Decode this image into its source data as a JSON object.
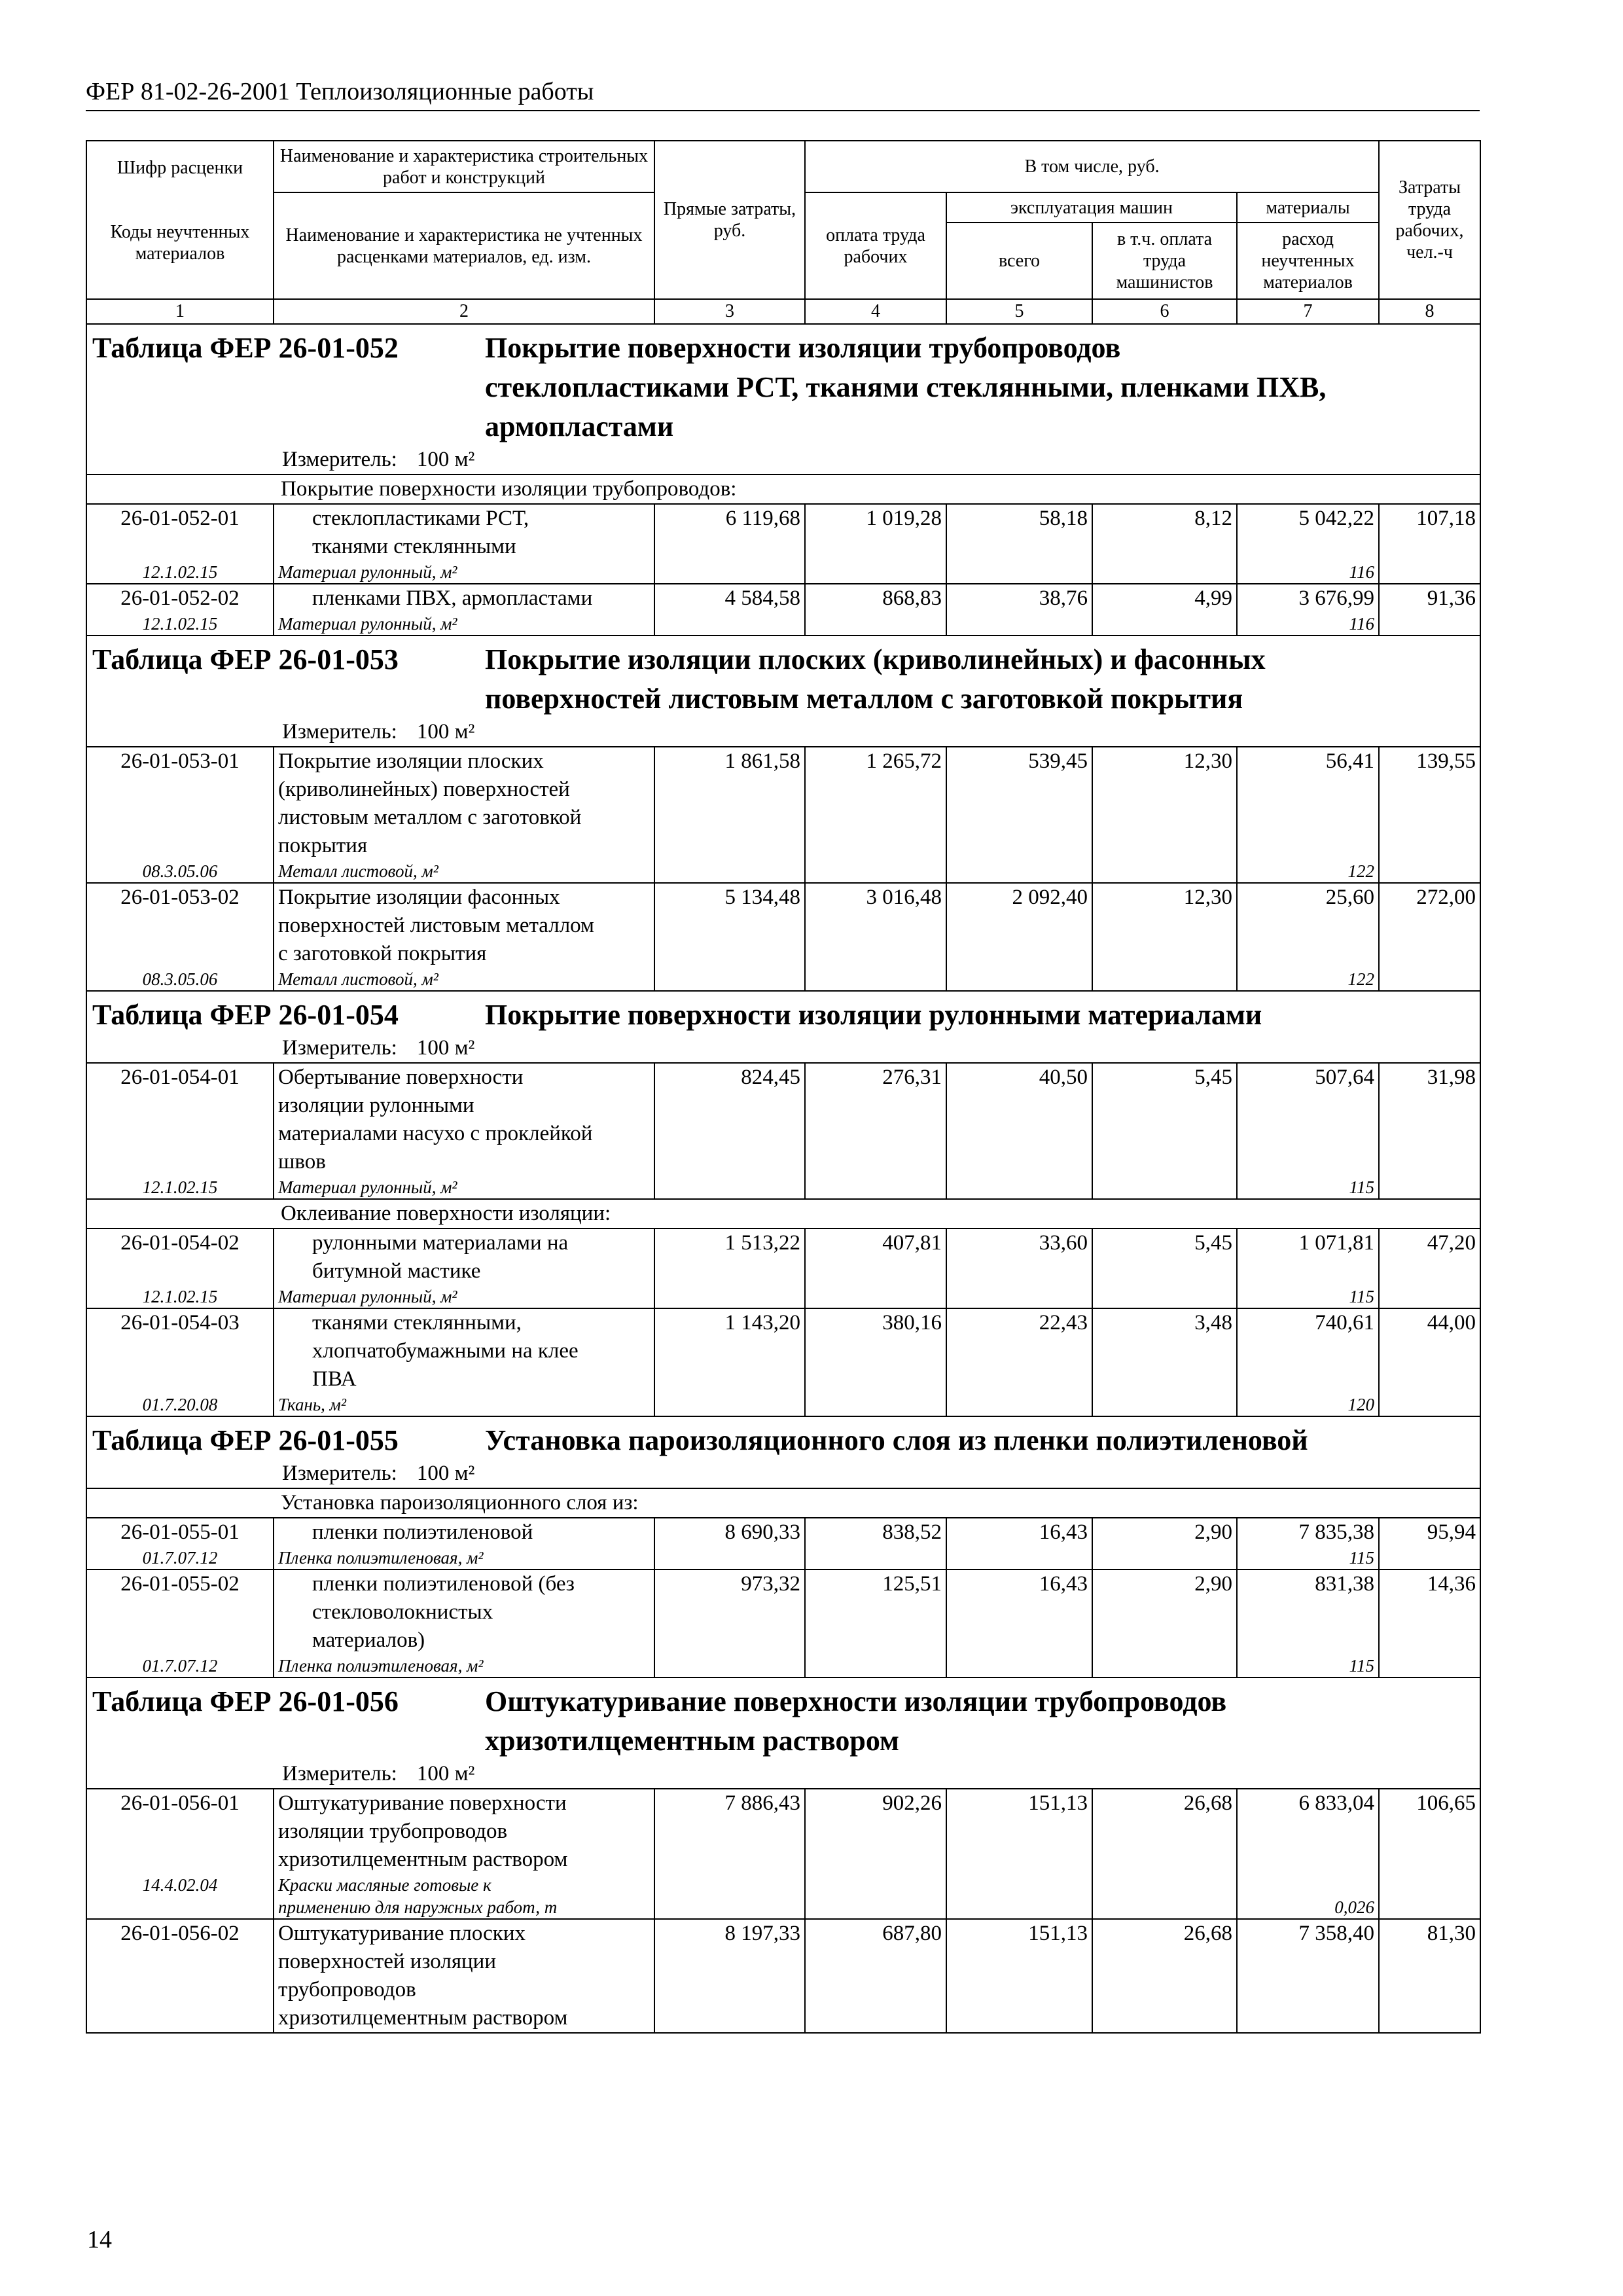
{
  "page_header": "ФЕР 81-02-26-2001 Теплоизоляционные работы",
  "page_number": "14",
  "columns": {
    "c1_top": "Шифр расценки",
    "c1_bottom": "Коды неучтенных материалов",
    "c2_top": "Наименование и характеристика строительных работ и конструкций",
    "c2_bottom": "Наименование и характеристика не учтенных расценками материалов, ед. изм.",
    "c3": "Прямые затраты, руб.",
    "group": "В том числе, руб.",
    "c4": "оплата труда рабочих",
    "machines": "эксплуатация машин",
    "c5": "всего",
    "c6": "в т.ч. оплата труда машинистов",
    "materials": "материалы",
    "c7": "расход неучтенных материалов",
    "c8": "Затраты труда рабочих, чел.-ч",
    "numbers": [
      "1",
      "2",
      "3",
      "4",
      "5",
      "6",
      "7",
      "8"
    ]
  },
  "sections": [
    {
      "code": "Таблица ФЕР 26-01-052",
      "title": [
        "Покрытие поверхности изоляции трубопроводов",
        "стеклопластиками РСТ, тканями стеклянными, пленками ПХВ,",
        "армопластами"
      ],
      "measure_label": "Измеритель:",
      "measure": "100 м²",
      "rows": [
        {
          "type": "group",
          "text": "Покрытие поверхности изоляции трубопроводов:"
        },
        {
          "type": "item",
          "code": "26-01-052-01",
          "indent": true,
          "name": [
            "стеклопластиками РСТ,",
            "тканями стеклянными"
          ],
          "values": [
            "6 119,68",
            "1 019,28",
            "58,18",
            "8,12",
            "5 042,22",
            "107,18"
          ],
          "material": {
            "code": "12.1.02.15",
            "name": [
              "Материал рулонный, м²"
            ],
            "qty": "116"
          }
        },
        {
          "type": "item",
          "code": "26-01-052-02",
          "indent": true,
          "name": [
            "пленками ПВХ, армопластами"
          ],
          "values": [
            "4 584,58",
            "868,83",
            "38,76",
            "4,99",
            "3 676,99",
            "91,36"
          ],
          "material": {
            "code": "12.1.02.15",
            "name": [
              "Материал рулонный, м²"
            ],
            "qty": "116"
          }
        }
      ]
    },
    {
      "code": "Таблица ФЕР 26-01-053",
      "title": [
        "Покрытие изоляции плоских (криволинейных) и фасонных",
        "поверхностей листовым металлом с заготовкой покрытия"
      ],
      "measure_label": "Измеритель:",
      "measure": "100 м²",
      "rows": [
        {
          "type": "item",
          "code": "26-01-053-01",
          "indent": false,
          "name": [
            "Покрытие изоляции плоских",
            "(криволинейных) поверхностей",
            "листовым металлом с заготовкой",
            "покрытия"
          ],
          "values": [
            "1 861,58",
            "1 265,72",
            "539,45",
            "12,30",
            "56,41",
            "139,55"
          ],
          "material": {
            "code": "08.3.05.06",
            "name": [
              "Металл листовой, м²"
            ],
            "qty": "122"
          }
        },
        {
          "type": "item",
          "code": "26-01-053-02",
          "indent": false,
          "name": [
            "Покрытие изоляции фасонных",
            "поверхностей листовым металлом",
            "с заготовкой покрытия"
          ],
          "values": [
            "5 134,48",
            "3 016,48",
            "2 092,40",
            "12,30",
            "25,60",
            "272,00"
          ],
          "material": {
            "code": "08.3.05.06",
            "name": [
              "Металл листовой, м²"
            ],
            "qty": "122"
          }
        }
      ]
    },
    {
      "code": "Таблица ФЕР 26-01-054",
      "title": [
        "Покрытие поверхности изоляции рулонными материалами"
      ],
      "measure_label": "Измеритель:",
      "measure": "100 м²",
      "rows": [
        {
          "type": "item",
          "code": "26-01-054-01",
          "indent": false,
          "name": [
            "Обертывание поверхности",
            "изоляции рулонными",
            "материалами насухо с проклейкой",
            "швов"
          ],
          "values": [
            "824,45",
            "276,31",
            "40,50",
            "5,45",
            "507,64",
            "31,98"
          ],
          "material": {
            "code": "12.1.02.15",
            "name": [
              "Материал рулонный, м²"
            ],
            "qty": "115"
          }
        },
        {
          "type": "group",
          "text": "Оклеивание поверхности изоляции:"
        },
        {
          "type": "item",
          "code": "26-01-054-02",
          "indent": true,
          "name": [
            "рулонными материалами на",
            "битумной мастике"
          ],
          "values": [
            "1 513,22",
            "407,81",
            "33,60",
            "5,45",
            "1 071,81",
            "47,20"
          ],
          "material": {
            "code": "12.1.02.15",
            "name": [
              "Материал рулонный, м²"
            ],
            "qty": "115"
          }
        },
        {
          "type": "item",
          "code": "26-01-054-03",
          "indent": true,
          "name": [
            "тканями стеклянными,",
            "хлопчатобумажными на клее",
            "ПВА"
          ],
          "values": [
            "1 143,20",
            "380,16",
            "22,43",
            "3,48",
            "740,61",
            "44,00"
          ],
          "material": {
            "code": "01.7.20.08",
            "name": [
              "Ткань, м²"
            ],
            "qty": "120"
          }
        }
      ]
    },
    {
      "code": "Таблица ФЕР 26-01-055",
      "title": [
        "Установка пароизоляционного слоя из пленки полиэтиленовой"
      ],
      "measure_label": "Измеритель:",
      "measure": "100 м²",
      "rows": [
        {
          "type": "group",
          "text": "Установка пароизоляционного слоя из:"
        },
        {
          "type": "item",
          "code": "26-01-055-01",
          "indent": true,
          "name": [
            "пленки полиэтиленовой"
          ],
          "values": [
            "8 690,33",
            "838,52",
            "16,43",
            "2,90",
            "7 835,38",
            "95,94"
          ],
          "material": {
            "code": "01.7.07.12",
            "name": [
              "Пленка полиэтиленовая, м²"
            ],
            "qty": "115"
          }
        },
        {
          "type": "item",
          "code": "26-01-055-02",
          "indent": true,
          "name": [
            "пленки полиэтиленовой (без",
            "стекловолокнистых",
            "материалов)"
          ],
          "values": [
            "973,32",
            "125,51",
            "16,43",
            "2,90",
            "831,38",
            "14,36"
          ],
          "material": {
            "code": "01.7.07.12",
            "name": [
              "Пленка полиэтиленовая, м²"
            ],
            "qty": "115"
          }
        }
      ]
    },
    {
      "code": "Таблица ФЕР 26-01-056",
      "title": [
        "Оштукатуривание поверхности изоляции трубопроводов",
        "хризотилцементным раствором"
      ],
      "measure_label": "Измеритель:",
      "measure": "100 м²",
      "rows": [
        {
          "type": "item",
          "code": "26-01-056-01",
          "indent": false,
          "name": [
            "Оштукатуривание поверхности",
            "изоляции трубопроводов",
            "хризотилцементным раствором"
          ],
          "values": [
            "7 886,43",
            "902,26",
            "151,13",
            "26,68",
            "6 833,04",
            "106,65"
          ],
          "material": {
            "code": "14.4.02.04",
            "name": [
              "Краски масляные готовые к",
              "применению для наружных работ, т"
            ],
            "qty": "0,026"
          }
        },
        {
          "type": "item",
          "code": "26-01-056-02",
          "indent": false,
          "name": [
            "Оштукатуривание плоских",
            "поверхностей изоляции",
            "трубопроводов",
            "хризотилцементным раствором"
          ],
          "values": [
            "8 197,33",
            "687,80",
            "151,13",
            "26,68",
            "7 358,40",
            "81,30"
          ]
        }
      ]
    }
  ]
}
